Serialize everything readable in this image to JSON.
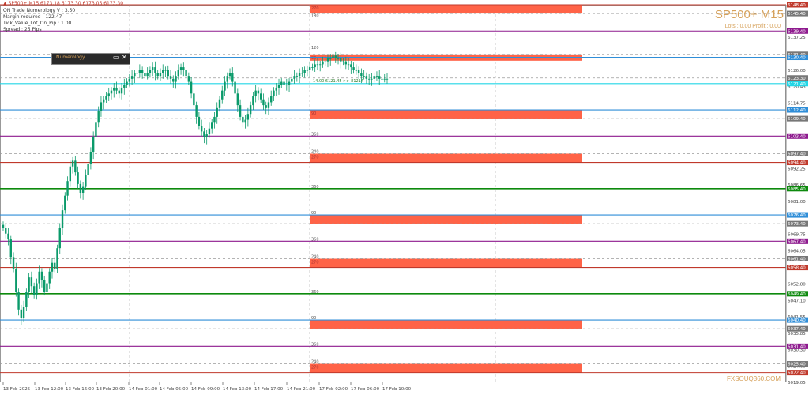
{
  "header": {
    "symbol_line": "▲ SP500+ M15 6173.18 6173.30 6173.05 6173.30",
    "lines": [
      "ON Trade Numerology V : 3.50",
      "Margin required : 122.47",
      "Tick_Value_Lot_On_Pip : 1.00",
      "Spread : 25 Pips"
    ]
  },
  "title": "SP500+ M15",
  "lots_profit": "Lots : 0.00 Profit : 0.00",
  "watermark": "FXSOUQ360.COM",
  "widget": {
    "title": "Numerology",
    "restore_icon": "restore-icon",
    "close_icon": "close-icon"
  },
  "colors": {
    "candle": "#0a9a6a",
    "zone": "#ff6347",
    "red_line": "#c0392b",
    "purple_line": "#8e1a8e",
    "blue_line": "#2f8ed8",
    "green_line": "#0d8a0d",
    "cyan_line": "#22d6e6",
    "grid": "#bcbcbc"
  },
  "price_axis": {
    "min": 6019.05,
    "max": 6148.4,
    "ticks": [
      "6137.25",
      "6126.00",
      "6120.45",
      "6114.75",
      "6103.65",
      "6092.25",
      "6086.65",
      "6081.00",
      "6069.75",
      "6064.05",
      "6058.65",
      "6052.80",
      "6047.10",
      "6041.55",
      "6035.85",
      "6030.30",
      "6024.60",
      "6019.05"
    ],
    "levels": [
      {
        "price": 6148.4,
        "label": "6148.40",
        "color": "red"
      },
      {
        "price": 6145.4,
        "label": "6145.40",
        "color": "grey"
      },
      {
        "price": 6139.4,
        "label": "6139.40",
        "color": "purple"
      },
      {
        "price": 6131.4,
        "label": "6131.40",
        "color": "grey"
      },
      {
        "price": 6130.4,
        "label": "6130.40",
        "color": "blue"
      },
      {
        "price": 6123.3,
        "label": "6123.30",
        "color": "grey"
      },
      {
        "price": 6121.4,
        "label": "6121.40",
        "color": "cyan"
      },
      {
        "price": 6112.4,
        "label": "6112.40",
        "color": "blue"
      },
      {
        "price": 6109.4,
        "label": "6109.40",
        "color": "grey"
      },
      {
        "price": 6103.4,
        "label": "6103.40",
        "color": "purple"
      },
      {
        "price": 6097.4,
        "label": "6097.40",
        "color": "grey"
      },
      {
        "price": 6094.4,
        "label": "6094.40",
        "color": "red"
      },
      {
        "price": 6085.4,
        "label": "6085.40",
        "color": "green"
      },
      {
        "price": 6076.4,
        "label": "6076.40",
        "color": "blue"
      },
      {
        "price": 6073.4,
        "label": "6073.40",
        "color": "grey"
      },
      {
        "price": 6067.4,
        "label": "6067.40",
        "color": "purple"
      },
      {
        "price": 6061.4,
        "label": "6061.40",
        "color": "grey"
      },
      {
        "price": 6058.4,
        "label": "6058.40",
        "color": "red"
      },
      {
        "price": 6049.4,
        "label": "6049.40",
        "color": "green"
      },
      {
        "price": 6040.4,
        "label": "6040.40",
        "color": "blue"
      },
      {
        "price": 6037.4,
        "label": "6037.40",
        "color": "grey"
      },
      {
        "price": 6031.4,
        "label": "6031.40",
        "color": "purple"
      },
      {
        "price": 6025.4,
        "label": "6025.40",
        "color": "grey"
      },
      {
        "price": 6022.4,
        "label": "6022.40",
        "color": "red"
      }
    ]
  },
  "zones": [
    {
      "top": 6148.4,
      "bottom": 6145.4,
      "label": "270"
    },
    {
      "top": 6131.4,
      "bottom": 6130.4,
      "label": "90"
    },
    {
      "top": 6112.4,
      "bottom": 6109.4,
      "label": "90"
    },
    {
      "top": 6097.4,
      "bottom": 6094.4,
      "label": "270"
    },
    {
      "top": 6076.4,
      "bottom": 6073.4,
      "label": ""
    },
    {
      "top": 6061.4,
      "bottom": 6058.4,
      "label": "270"
    },
    {
      "top": 6040.4,
      "bottom": 6037.4,
      "label": ""
    },
    {
      "top": 6025.4,
      "bottom": 6022.4,
      "label": "270"
    }
  ],
  "degree_labels": [
    {
      "price": 6144.0,
      "label": "180"
    },
    {
      "price": 6133.0,
      "label": "120"
    },
    {
      "price": 6103.4,
      "label": "360"
    },
    {
      "price": 6097.4,
      "label": "240"
    },
    {
      "price": 6085.4,
      "label": "360"
    },
    {
      "price": 6076.4,
      "label": "90"
    },
    {
      "price": 6067.4,
      "label": "360"
    },
    {
      "price": 6061.4,
      "label": "240"
    },
    {
      "price": 6049.4,
      "label": "360"
    },
    {
      "price": 6040.4,
      "label": "90"
    },
    {
      "price": 6031.4,
      "label": "360"
    },
    {
      "price": 6025.4,
      "label": "240"
    }
  ],
  "price_note": "14.00  6121.45  >> 81214",
  "time_axis": [
    "13 Feb 2025",
    "13 Feb 12:00",
    "13 Feb 16:00",
    "13 Feb 20:00",
    "14 Feb 01:00",
    "14 Feb 05:00",
    "14 Feb 09:00",
    "14 Feb 13:00",
    "14 Feb 17:00",
    "14 Feb 21:00",
    "17 Feb 02:00",
    "17 Feb 06:00",
    "17 Feb 10:00"
  ],
  "candles": {
    "bar_count": 150,
    "close": [
      6072,
      6070,
      6068,
      6062,
      6058,
      6050,
      6044,
      6041,
      6045,
      6050,
      6055,
      6052,
      6049,
      6053,
      6057,
      6054,
      6050,
      6053,
      6057,
      6060,
      6058,
      6065,
      6072,
      6078,
      6083,
      6088,
      6093,
      6095,
      6091,
      6087,
      6084,
      6086,
      6090,
      6094,
      6098,
      6103,
      6108,
      6112,
      6115,
      6116,
      6117,
      6118,
      6119,
      6120,
      6119,
      6118,
      6120,
      6121,
      6122,
      6123,
      6124,
      6125,
      6125,
      6126,
      6125,
      6124,
      6125,
      6126,
      6127,
      6125,
      6124,
      6125,
      6126,
      6126,
      6124,
      6123,
      6122,
      6124,
      6126,
      6127,
      6126,
      6124,
      6122,
      6118,
      6114,
      6110,
      6107,
      6105,
      6103,
      6104,
      6106,
      6108,
      6110,
      6113,
      6116,
      6119,
      6122,
      6124,
      6125,
      6122,
      6118,
      6114,
      6110,
      6108,
      6109,
      6111,
      6114,
      6117,
      6119,
      6118,
      6116,
      6114,
      6113,
      6115,
      6117,
      6119,
      6120,
      6121,
      6122,
      6121,
      6121,
      6122,
      6123,
      6124,
      6124,
      6125,
      6125,
      6126,
      6126,
      6127,
      6127,
      6128,
      6128,
      6128,
      6129,
      6129,
      6130,
      6130,
      6131,
      6130,
      6130,
      6129,
      6129,
      6128,
      6128,
      6127,
      6126,
      6126,
      6125,
      6124,
      6124,
      6123,
      6123,
      6123,
      6124,
      6124,
      6123,
      6123,
      6123,
      6123
    ]
  }
}
